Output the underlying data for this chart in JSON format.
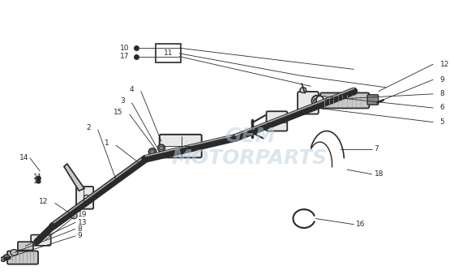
{
  "bg_color": "#ffffff",
  "line_color": "#2a2a2a",
  "gray_fill": "#c8c8c8",
  "dark_fill": "#888888",
  "light_fill": "#e8e8e8",
  "wm_color": "#b8cfe0",
  "fs": 6.5,
  "xlim": [
    0,
    10
  ],
  "ylim": [
    0,
    7.2
  ]
}
